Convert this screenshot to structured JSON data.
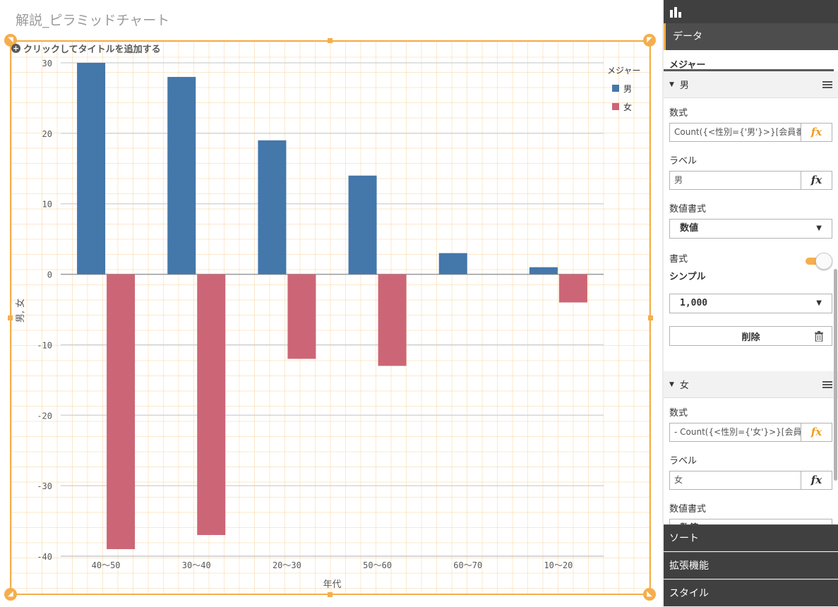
{
  "sheet": {
    "title": "解説_ピラミッドチャート",
    "add_title_hint": "クリックしてタイトルを追加する"
  },
  "chart_data": {
    "type": "bar",
    "categories": [
      "40〜50",
      "30〜40",
      "20〜30",
      "50〜60",
      "60〜70",
      "10〜20"
    ],
    "series": [
      {
        "name": "男",
        "values": [
          30,
          28,
          19,
          14,
          3,
          1
        ],
        "color": "#4477aa"
      },
      {
        "name": "女",
        "values": [
          -39,
          -37,
          -12,
          -13,
          0,
          -4
        ],
        "color": "#cc6677"
      }
    ],
    "xlabel": "年代",
    "ylabel": "男, 女",
    "ylim": [
      -40,
      30
    ],
    "yticks": [
      30,
      20,
      10,
      0,
      -10,
      -20,
      -30,
      -40
    ],
    "legend_title": "メジャー",
    "legend_position": "top-right",
    "grid": true
  },
  "panel": {
    "data_tab": "データ",
    "measures_title": "メジャー",
    "measures": [
      {
        "name": "男",
        "expression_label": "数式",
        "expression": "Count({<性別={'男'}>}[会員番",
        "label_label": "ラベル",
        "label": "男",
        "number_format_label": "数値書式",
        "number_format": "数値",
        "style_label": "書式",
        "style_value": "シンプル",
        "format_pattern": "1,000",
        "delete_label": "削除"
      },
      {
        "name": "女",
        "expression_label": "数式",
        "expression": "- Count({<性別={'女'}>}[会員番",
        "label_label": "ラベル",
        "label": "女",
        "number_format_label": "数値書式",
        "number_format": "数値"
      }
    ],
    "fx_label": "fx",
    "bottom_tabs": [
      "ソート",
      "拡張機能",
      "スタイル"
    ]
  }
}
